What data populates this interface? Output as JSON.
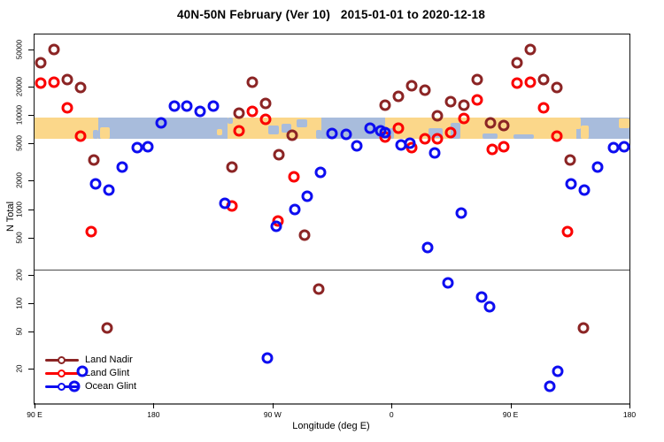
{
  "title": "40N-50N February (Ver 10)   2015-01-01 to 2020-12-18",
  "legend": {
    "items": [
      {
        "label": "Land Nadir",
        "color": "#8B2424"
      },
      {
        "label": "Land Glint",
        "color": "#FB0000"
      },
      {
        "label": "Ocean Glint",
        "color": "#0D0DF0"
      }
    ]
  },
  "chart_data": {
    "type": "scatter",
    "title": "40N-50N February (Ver 10)   2015-01-01 to 2020-12-18",
    "xlabel": "Longitude (deg E)",
    "ylabel": "N Total",
    "x_axis": {
      "range_deg": [
        90,
        540
      ],
      "ticks": [
        {
          "deg": 90,
          "label": "90 E"
        },
        {
          "deg": 180,
          "label": "180"
        },
        {
          "deg": 270,
          "label": "90 W"
        },
        {
          "deg": 360,
          "label": "0"
        },
        {
          "deg": 450,
          "label": "90 E"
        },
        {
          "deg": 540,
          "label": "180"
        }
      ],
      "wrap_repeat": true
    },
    "y_axis": {
      "scale": "log",
      "ticks": [
        20,
        50,
        100,
        200,
        500,
        1000,
        2000,
        5000,
        10000,
        20000,
        50000
      ],
      "range": [
        13,
        60000
      ]
    },
    "reference_line_value": 225,
    "map_band": {
      "description": "40N-50N latitude land/ocean strip drawn across the plot",
      "land_color": "#FBD78A",
      "ocean_color": "#A8BCDC",
      "n_range": [
        5600,
        9400
      ],
      "land_segments_deg": [
        [
          90,
          138
        ],
        [
          236,
          307
        ],
        [
          355,
          500
        ]
      ],
      "islands": [
        {
          "deg": [
            139.5,
            147
          ],
          "v": [
            0.45,
            1
          ]
        },
        {
          "deg": [
            228,
            232
          ],
          "v": [
            0.55,
            0.85
          ]
        },
        {
          "deg": [
            496,
            503
          ],
          "v": [
            0,
            0.55
          ]
        },
        {
          "deg": [
            503.5,
            509
          ],
          "v": [
            0.4,
            1
          ]
        },
        {
          "deg": [
            532,
            540
          ],
          "v": [
            0.05,
            0.5
          ]
        }
      ],
      "water_patches": [
        {
          "deg": [
            134,
            138
          ],
          "v": [
            0.6,
            1
          ]
        },
        {
          "deg": [
            236,
            240
          ],
          "v": [
            0,
            0.3
          ]
        },
        {
          "deg": [
            267,
            275
          ],
          "v": [
            0.4,
            0.78
          ]
        },
        {
          "deg": [
            277,
            284
          ],
          "v": [
            0.3,
            0.7
          ]
        },
        {
          "deg": [
            288,
            296
          ],
          "v": [
            0.1,
            0.45
          ]
        },
        {
          "deg": [
            303,
            307
          ],
          "v": [
            0.6,
            1
          ]
        },
        {
          "deg": [
            355,
            362
          ],
          "v": [
            0.5,
            1
          ]
        },
        {
          "deg": [
            388,
            399
          ],
          "v": [
            0.5,
            0.95
          ]
        },
        {
          "deg": [
            405,
            412
          ],
          "v": [
            0.25,
            1
          ]
        },
        {
          "deg": [
            429,
            440
          ],
          "v": [
            0.75,
            1
          ]
        },
        {
          "deg": [
            452,
            468
          ],
          "v": [
            0.8,
            1
          ]
        }
      ]
    },
    "series": [
      {
        "name": "Land Nadir",
        "color": "#8B2424",
        "points": [
          [
            95,
            36000
          ],
          [
            105,
            50000
          ],
          [
            115,
            24000
          ],
          [
            125,
            19500
          ],
          [
            135,
            3300
          ],
          [
            145,
            55
          ],
          [
            239,
            2800
          ],
          [
            245,
            10500
          ],
          [
            255,
            22300
          ],
          [
            265,
            13200
          ],
          [
            275,
            3800
          ],
          [
            285,
            6100
          ],
          [
            294,
            530
          ],
          [
            305,
            140
          ],
          [
            355,
            12700
          ],
          [
            365,
            15800
          ],
          [
            375,
            20500
          ],
          [
            385,
            18400
          ],
          [
            395,
            9800
          ],
          [
            405,
            13850
          ],
          [
            415,
            12700
          ],
          [
            425,
            23800
          ],
          [
            435,
            8200
          ],
          [
            445,
            7700
          ]
        ]
      },
      {
        "name": "Land Glint",
        "color": "#FB0000",
        "points": [
          [
            95,
            21900
          ],
          [
            105,
            22400
          ],
          [
            115,
            11900
          ],
          [
            125,
            5900
          ],
          [
            133,
            580
          ],
          [
            239,
            1070
          ],
          [
            245,
            6760
          ],
          [
            255,
            10900
          ],
          [
            265,
            8980
          ],
          [
            274,
            750
          ],
          [
            286,
            2190
          ],
          [
            355,
            5800
          ],
          [
            365,
            7200
          ],
          [
            375,
            4480
          ],
          [
            385,
            5570
          ],
          [
            395,
            5570
          ],
          [
            405,
            6470
          ],
          [
            415,
            9160
          ],
          [
            425,
            14500
          ],
          [
            436,
            4290
          ],
          [
            445,
            4570
          ]
        ]
      },
      {
        "name": "Ocean Glint",
        "color": "#0D0DF0",
        "points": [
          [
            120,
            13
          ],
          [
            126,
            19
          ],
          [
            136,
            1840
          ],
          [
            146,
            1580
          ],
          [
            156,
            2780
          ],
          [
            168,
            4480
          ],
          [
            176,
            4570
          ],
          [
            186,
            8220
          ],
          [
            196,
            12400
          ],
          [
            205,
            12300
          ],
          [
            215,
            10900
          ],
          [
            225,
            12300
          ],
          [
            234,
            1160
          ],
          [
            266,
            26
          ],
          [
            273,
            660
          ],
          [
            287,
            1000
          ],
          [
            296,
            1360
          ],
          [
            306,
            2440
          ],
          [
            315,
            6400
          ],
          [
            326,
            6200
          ],
          [
            334,
            4680
          ],
          [
            344,
            7220
          ],
          [
            352,
            6760
          ],
          [
            355,
            6470
          ],
          [
            367,
            4780
          ],
          [
            374,
            4990
          ],
          [
            387,
            390
          ],
          [
            393,
            3930
          ],
          [
            403,
            165
          ],
          [
            413,
            916
          ],
          [
            428,
            116
          ],
          [
            434,
            92
          ]
        ]
      }
    ]
  }
}
